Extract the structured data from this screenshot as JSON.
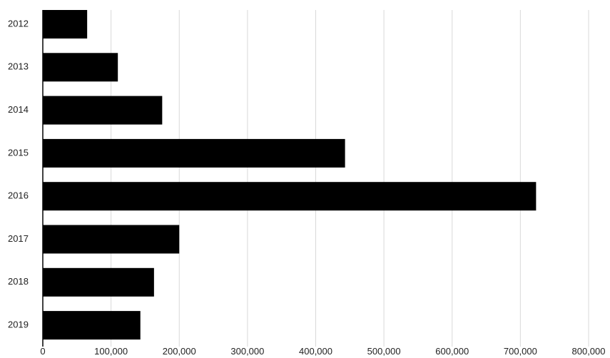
{
  "chart_data": {
    "type": "bar",
    "orientation": "horizontal",
    "categories": [
      "2012",
      "2013",
      "2014",
      "2015",
      "2016",
      "2017",
      "2018",
      "2019"
    ],
    "values": [
      65000,
      110000,
      175000,
      443000,
      723000,
      200000,
      163000,
      143000
    ],
    "title": "",
    "xlabel": "",
    "ylabel": "",
    "xlim": [
      0,
      800000
    ],
    "x_ticks": [
      0,
      100000,
      200000,
      300000,
      400000,
      500000,
      600000,
      700000,
      800000
    ],
    "x_tick_labels": [
      "0",
      "100,000",
      "200,000",
      "300,000",
      "400,000",
      "500,000",
      "600,000",
      "700,000",
      "800,000"
    ],
    "grid": "vertical",
    "legend": "none",
    "colors": {
      "bar": "#000000",
      "grid": "#d9d9d9",
      "axis": "#000000",
      "text": "#222222"
    }
  }
}
